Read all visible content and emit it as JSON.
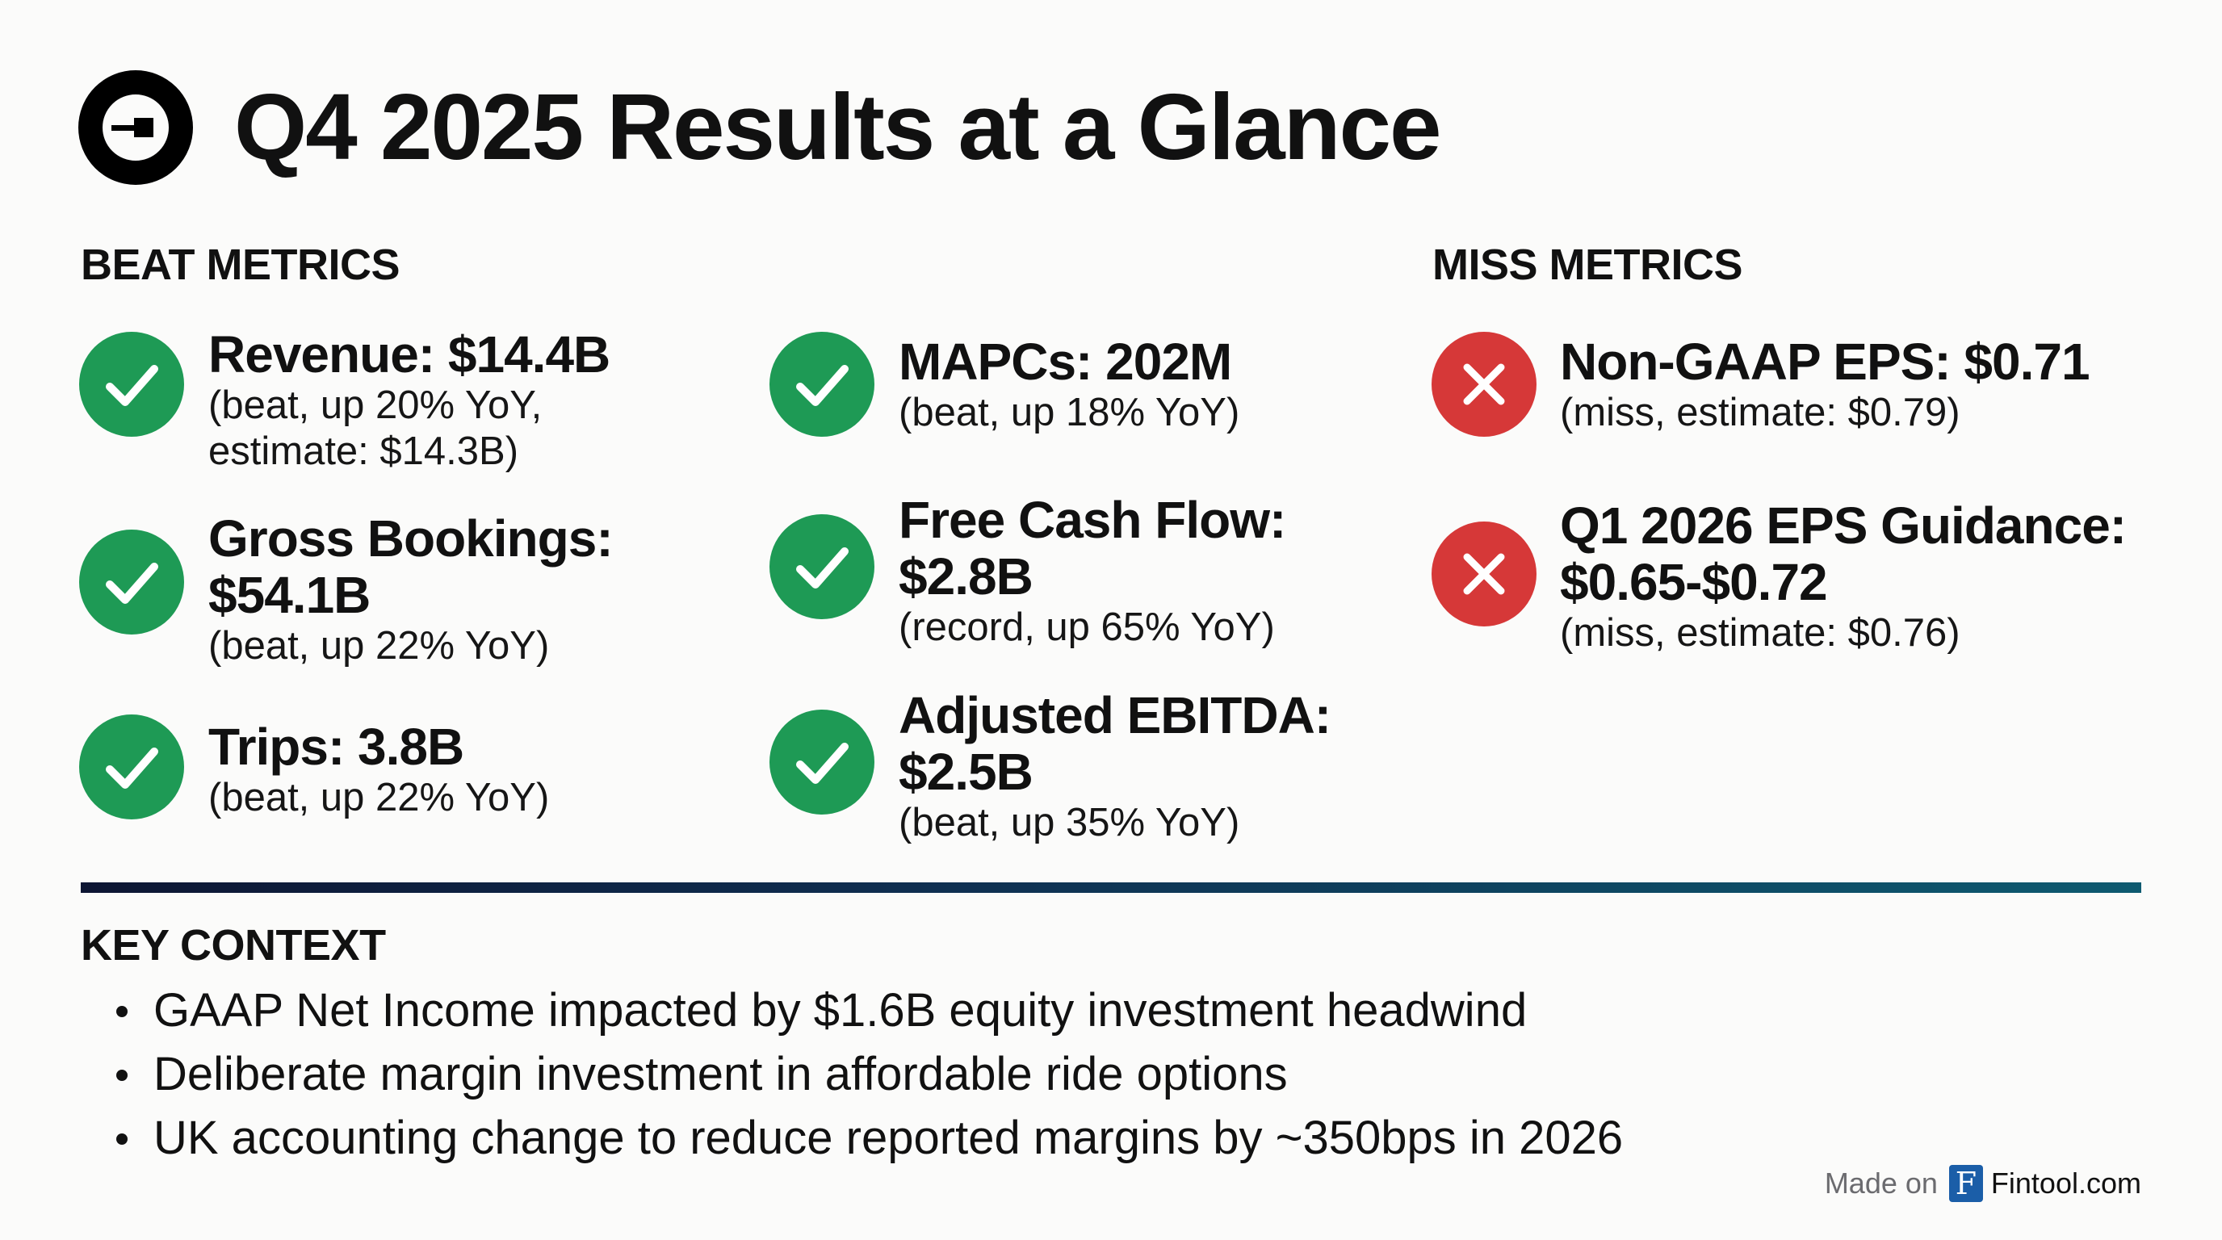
{
  "header": {
    "title": "Q4 2025 Results at a Glance",
    "logo": "uber-logo-icon"
  },
  "beat_section": {
    "heading": "BEAT METRICS"
  },
  "miss_section": {
    "heading": "MISS METRICS"
  },
  "colors": {
    "beat": "#1e9a55",
    "miss": "#d63838",
    "divider_start": "#0d1633",
    "divider_end": "#0e5a70",
    "brand": "#1b5ea8"
  },
  "beat_metrics": [
    {
      "title_lines": [
        "Revenue: $14.4B"
      ],
      "sub_lines": [
        "(beat, up 20% YoY,",
        "estimate: $14.3B)"
      ],
      "icon": "check-circle-icon"
    },
    {
      "title_lines": [
        "Gross Bookings:",
        "$54.1B"
      ],
      "sub_lines": [
        "(beat, up 22% YoY)"
      ],
      "icon": "check-circle-icon"
    },
    {
      "title_lines": [
        "Trips: 3.8B"
      ],
      "sub_lines": [
        "(beat, up 22% YoY)"
      ],
      "icon": "check-circle-icon"
    },
    {
      "title_lines": [
        "MAPCs: 202M"
      ],
      "sub_lines": [
        "(beat, up 18% YoY)"
      ],
      "icon": "check-circle-icon"
    },
    {
      "title_lines": [
        "Free Cash Flow:",
        "$2.8B"
      ],
      "sub_lines": [
        "(record, up 65% YoY)"
      ],
      "icon": "check-circle-icon"
    },
    {
      "title_lines": [
        "Adjusted EBITDA:",
        "$2.5B"
      ],
      "sub_lines": [
        "(beat, up 35% YoY)"
      ],
      "icon": "check-circle-icon"
    }
  ],
  "miss_metrics": [
    {
      "title_lines": [
        "Non-GAAP EPS: $0.71"
      ],
      "sub_lines": [
        "(miss, estimate: $0.79)"
      ],
      "icon": "x-circle-icon"
    },
    {
      "title_lines": [
        "Q1 2026 EPS Guidance:",
        "$0.65-$0.72"
      ],
      "sub_lines": [
        "(miss, estimate: $0.76)"
      ],
      "icon": "x-circle-icon"
    }
  ],
  "key_context": {
    "heading": "KEY CONTEXT",
    "bullets": [
      "GAAP Net Income impacted by $1.6B equity investment headwind",
      "Deliberate margin investment in affordable ride options",
      "UK accounting change to reduce reported margins by ~350bps in 2026"
    ]
  },
  "footer": {
    "made_on": "Made on",
    "brand_letter": "F",
    "brand": "Fintool.com"
  }
}
